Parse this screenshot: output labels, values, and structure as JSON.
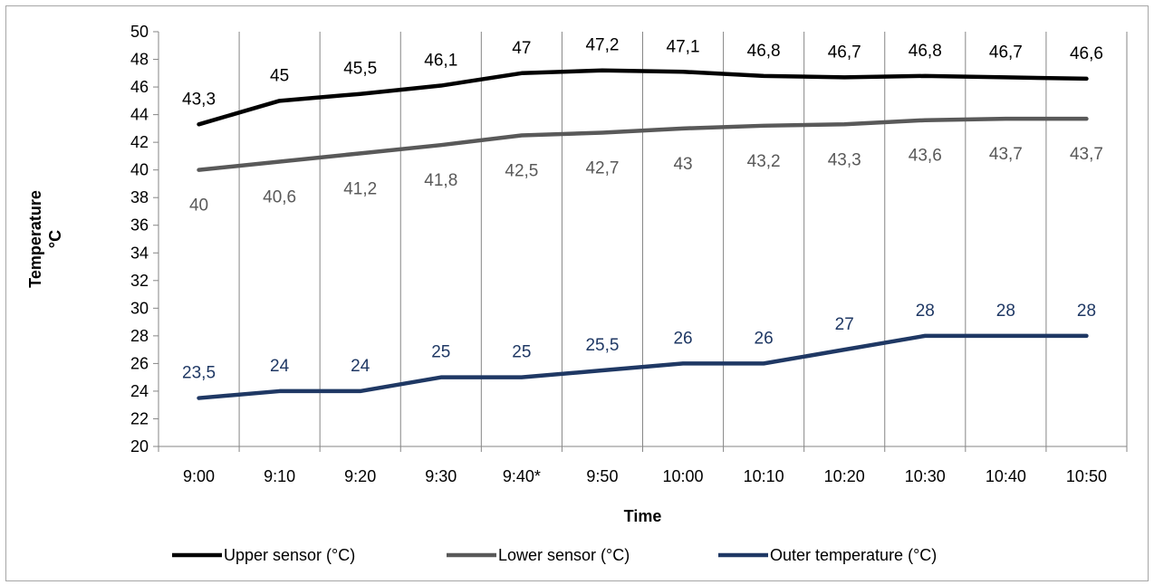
{
  "chart_data": {
    "type": "line",
    "xlabel": "Time",
    "ylabel": "Temperature °C",
    "ylim": [
      20,
      50
    ],
    "ytick_step": 2,
    "grid": "vertical",
    "legend": "bottom",
    "categories": [
      "9:00",
      "9:10",
      "9:20",
      "9:30",
      "9:40*",
      "9:50",
      "10:00",
      "10:10",
      "10:20",
      "10:30",
      "10:40",
      "10:50"
    ],
    "series": [
      {
        "name": "Upper sensor (°C)",
        "color": "#000000",
        "values": [
          43.3,
          45,
          45.5,
          46.1,
          47,
          47.2,
          47.1,
          46.8,
          46.7,
          46.8,
          46.7,
          46.6
        ],
        "labels": [
          "43,3",
          "45",
          "45,5",
          "46,1",
          "47",
          "47,2",
          "47,1",
          "46,8",
          "46,7",
          "46,8",
          "46,7",
          "46,6"
        ],
        "label_position": "above"
      },
      {
        "name": "Lower sensor (°C)",
        "color": "#595959",
        "values": [
          40,
          40.6,
          41.2,
          41.8,
          42.5,
          42.7,
          43,
          43.2,
          43.3,
          43.6,
          43.7,
          43.7
        ],
        "labels": [
          "40",
          "40,6",
          "41,2",
          "41,8",
          "42,5",
          "42,7",
          "43",
          "43,2",
          "43,3",
          "43,6",
          "43,7",
          "43,7"
        ],
        "label_position": "below"
      },
      {
        "name": "Outer temperature (°C)",
        "color": "#1f3864",
        "values": [
          23.5,
          24,
          24,
          25,
          25,
          25.5,
          26,
          26,
          27,
          28,
          28,
          28
        ],
        "labels": [
          "23,5",
          "24",
          "24",
          "25",
          "25",
          "25,5",
          "26",
          "26",
          "27",
          "28",
          "28",
          "28"
        ],
        "label_position": "above"
      }
    ]
  }
}
